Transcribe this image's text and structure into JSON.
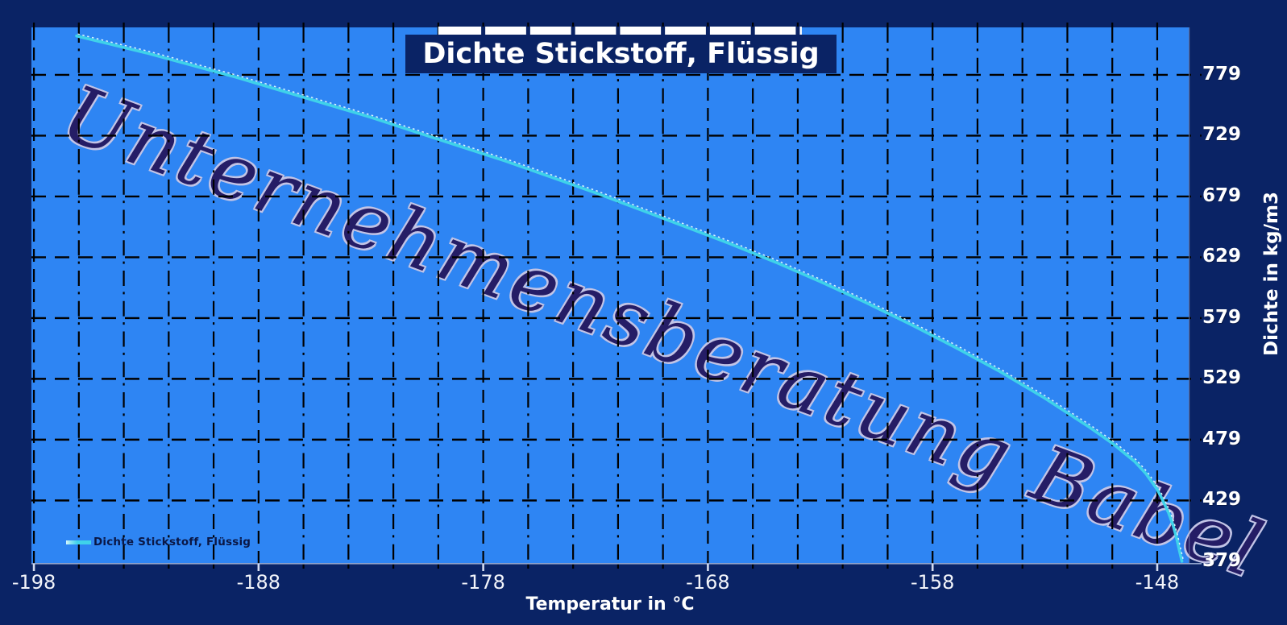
{
  "title": {
    "text": "Dichte Stickstoff, Flüssig"
  },
  "watermark": {
    "text": "Unternehmensberatung Babel"
  },
  "legend": {
    "label": "Dichte Stickstoff, Flüssig"
  },
  "x_axis": {
    "title": "Temperatur in °C",
    "tick_labels": [
      "-198",
      "-188",
      "-178",
      "-168",
      "-158",
      "-148"
    ]
  },
  "y_axis": {
    "title": "Dichte in kg/m3",
    "tick_labels": [
      "779",
      "729",
      "679",
      "629",
      "579",
      "529",
      "479",
      "429",
      "379"
    ]
  },
  "colors": {
    "background_navy": "#0a2365",
    "plot_area_blue": "#2e85f3",
    "gridline_black": "#000000",
    "curve_cyan": "#3fd2ea",
    "curve_highlight": "#e6fbff",
    "watermark_fill": "#251d66",
    "watermark_halo": "#c2c4e6",
    "label_white": "#ffffff",
    "legend_text": "#0a1745",
    "axis_edge_grey": "#8fa3cc",
    "major_tick_light": "#d4dcf0",
    "title_strip_white": "#ffffff"
  },
  "chart_data": {
    "type": "line",
    "title": "Dichte Stickstoff, Flüssig",
    "xlabel": "Temperatur in °C",
    "ylabel": "Dichte in kg/m3",
    "xlim": [
      -198.11,
      -146.6
    ],
    "ylim": [
      377.6,
      818.0
    ],
    "x_ticks": [
      -198,
      -188,
      -178,
      -168,
      -158,
      -148
    ],
    "y_ticks": [
      779,
      729,
      679,
      629,
      579,
      529,
      479,
      429,
      379
    ],
    "grid": {
      "vertical_step_degC": 2,
      "horizontal_step_kgm3": 50,
      "style": "black dashed, dash-dot minors",
      "title_strip_span_degC": [
        -180,
        -164
      ]
    },
    "legend_position": "bottom-left",
    "series": [
      {
        "name": "Dichte Stickstoff, Flüssig",
        "color": "#3fd2ea",
        "points": [
          [
            -196.1,
            811
          ],
          [
            -195,
            806
          ],
          [
            -193,
            797
          ],
          [
            -191,
            787
          ],
          [
            -190,
            782
          ],
          [
            -189,
            777
          ],
          [
            -187,
            766
          ],
          [
            -185,
            755
          ],
          [
            -183,
            744
          ],
          [
            -181,
            732
          ],
          [
            -179,
            720
          ],
          [
            -177,
            708
          ],
          [
            -175,
            695
          ],
          [
            -173,
            682
          ],
          [
            -171,
            668
          ],
          [
            -169,
            654
          ],
          [
            -167,
            640
          ],
          [
            -165,
            625
          ],
          [
            -163,
            609
          ],
          [
            -161,
            592
          ],
          [
            -159,
            574
          ],
          [
            -157,
            555
          ],
          [
            -155,
            535
          ],
          [
            -153,
            513
          ],
          [
            -151,
            489
          ],
          [
            -150,
            476
          ],
          [
            -149,
            461
          ],
          [
            -148.5,
            451
          ],
          [
            -148,
            438
          ],
          [
            -147.8,
            431
          ],
          [
            -147.5,
            419
          ],
          [
            -147.3,
            409
          ],
          [
            -147.15,
            399
          ],
          [
            -147.0,
            387
          ],
          [
            -146.9,
            379
          ]
        ]
      }
    ]
  }
}
